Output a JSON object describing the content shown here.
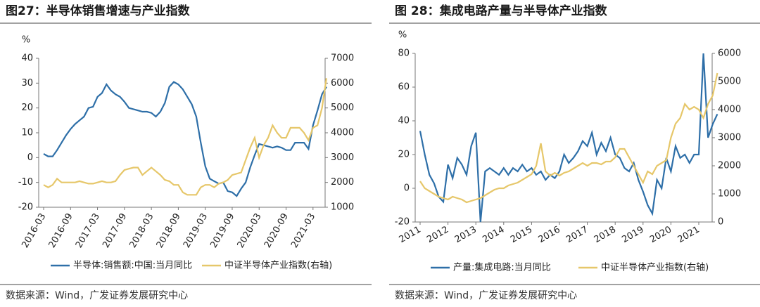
{
  "chart_data": [
    {
      "type": "line",
      "title": "图27：半导体销售增速与产业指数",
      "y_unit": "%",
      "source": "数据来源：Wind，广发证券发展研究中心",
      "categories": [
        "2016-03",
        null,
        null,
        null,
        null,
        null,
        "2016-09",
        null,
        null,
        null,
        null,
        null,
        "2017-03",
        null,
        null,
        null,
        null,
        null,
        "2017-09",
        null,
        null,
        null,
        null,
        null,
        "2018-03",
        null,
        null,
        null,
        null,
        null,
        "2018-09",
        null,
        null,
        null,
        null,
        null,
        "2019-03",
        null,
        null,
        null,
        null,
        null,
        "2019-09",
        null,
        null,
        null,
        null,
        null,
        "2020-03",
        null,
        null,
        null,
        null,
        null,
        "2020-09",
        null,
        null,
        null,
        null,
        null,
        "2021-03",
        null,
        null,
        null
      ],
      "series": [
        {
          "name": "半导体:销售额:中国:当月同比",
          "color": "#2e6fa8",
          "values": [
            1.5,
            0.5,
            0.5,
            3,
            6,
            9,
            11.5,
            13.5,
            15,
            16.5,
            20,
            20.5,
            24.5,
            26,
            29.5,
            27,
            25.5,
            24.5,
            22.5,
            20,
            19.5,
            19,
            18.5,
            18.5,
            18,
            16.5,
            18.5,
            22,
            28.5,
            30.5,
            29.5,
            27.5,
            24.5,
            21.5,
            16.5,
            6,
            -3.5,
            -8.5,
            -9.5,
            -10.5,
            -10,
            -13.5,
            -14,
            -15.5,
            -12.5,
            -10,
            -4,
            1,
            5.5,
            5,
            4.5,
            4,
            4.5,
            4,
            3,
            3,
            6,
            6,
            6,
            3.5,
            13,
            19,
            25.5,
            28.5
          ]
        },
        {
          "name": "中证半导体产业指数(右轴)",
          "color": "#e6c76a",
          "axis": "y2",
          "values": [
            1900,
            1800,
            1900,
            2150,
            2000,
            2000,
            2000,
            2000,
            2050,
            2000,
            1950,
            1950,
            2000,
            2050,
            2000,
            2000,
            2050,
            2300,
            2500,
            2550,
            2600,
            2600,
            2300,
            2450,
            2600,
            2450,
            2300,
            2100,
            2050,
            1900,
            1900,
            1600,
            1500,
            1500,
            1500,
            1800,
            1900,
            1900,
            1800,
            1950,
            2000,
            2100,
            2300,
            2350,
            2400,
            2900,
            3400,
            3800,
            3000,
            3500,
            3800,
            4300,
            4000,
            3800,
            3800,
            4200,
            4200,
            4200,
            4000,
            3700,
            4200,
            4300,
            5000,
            6200
          ]
        }
      ],
      "ylim": [
        -20,
        40
      ],
      "yticks": [
        -20,
        -10,
        0,
        10,
        20,
        30,
        40
      ],
      "y2lim": [
        1000,
        7000
      ],
      "y2ticks": [
        1000,
        2000,
        3000,
        4000,
        5000,
        6000,
        7000
      ]
    },
    {
      "type": "line",
      "title": "图 28：集成电路产量与半导体产业指数",
      "y_unit": "%",
      "source": "数据来源：Wind，广发证券发展研究中心",
      "categories": [
        "2011",
        null,
        null,
        null,
        null,
        null,
        "2012",
        null,
        null,
        null,
        null,
        null,
        "2013",
        null,
        null,
        null,
        null,
        null,
        "2014",
        null,
        null,
        null,
        null,
        null,
        "2015",
        null,
        null,
        null,
        null,
        null,
        "2016",
        null,
        null,
        null,
        null,
        null,
        "2017",
        null,
        null,
        null,
        null,
        null,
        "2018",
        null,
        null,
        null,
        null,
        null,
        "2019",
        null,
        null,
        null,
        null,
        null,
        "2020",
        null,
        null,
        null,
        null,
        null,
        "2021",
        null,
        null,
        null,
        null
      ],
      "series": [
        {
          "name": "产量:集成电路:当月同比",
          "color": "#2e6fa8",
          "values": [
            34,
            20,
            8,
            3,
            -5,
            -8,
            14,
            6,
            18,
            14,
            8,
            25,
            33,
            -20,
            10,
            12,
            10,
            8,
            12,
            8,
            12,
            10,
            14,
            10,
            12,
            8,
            10,
            5,
            8,
            6,
            10,
            20,
            15,
            18,
            22,
            28,
            25,
            33,
            20,
            27,
            22,
            30,
            20,
            18,
            12,
            10,
            15,
            5,
            -2,
            -10,
            -15,
            5,
            0,
            18,
            10,
            25,
            18,
            20,
            15,
            20,
            20,
            80,
            30,
            38,
            44
          ]
        },
        {
          "name": "中证半导体产业指数(右轴)",
          "color": "#e6c76a",
          "axis": "y2",
          "values": [
            1450,
            1200,
            1100,
            1000,
            900,
            850,
            800,
            900,
            850,
            800,
            700,
            750,
            800,
            850,
            950,
            1050,
            1150,
            1200,
            1200,
            1300,
            1350,
            1400,
            1500,
            1600,
            1700,
            2000,
            2800,
            1800,
            1650,
            1750,
            1650,
            1750,
            1800,
            1900,
            2000,
            2100,
            2000,
            2100,
            2100,
            2050,
            2150,
            2150,
            2300,
            2600,
            2600,
            2300,
            2000,
            1700,
            1400,
            1800,
            1700,
            2000,
            2100,
            2200,
            3000,
            3500,
            3700,
            4200,
            4000,
            4100,
            4000,
            3700,
            4200,
            4500,
            5300
          ]
        }
      ],
      "ylim": [
        -20,
        80
      ],
      "yticks": [
        -20,
        0,
        20,
        40,
        60,
        80
      ],
      "y2lim": [
        0,
        6000
      ],
      "y2ticks": [
        0,
        1000,
        2000,
        3000,
        4000,
        5000,
        6000
      ]
    }
  ]
}
